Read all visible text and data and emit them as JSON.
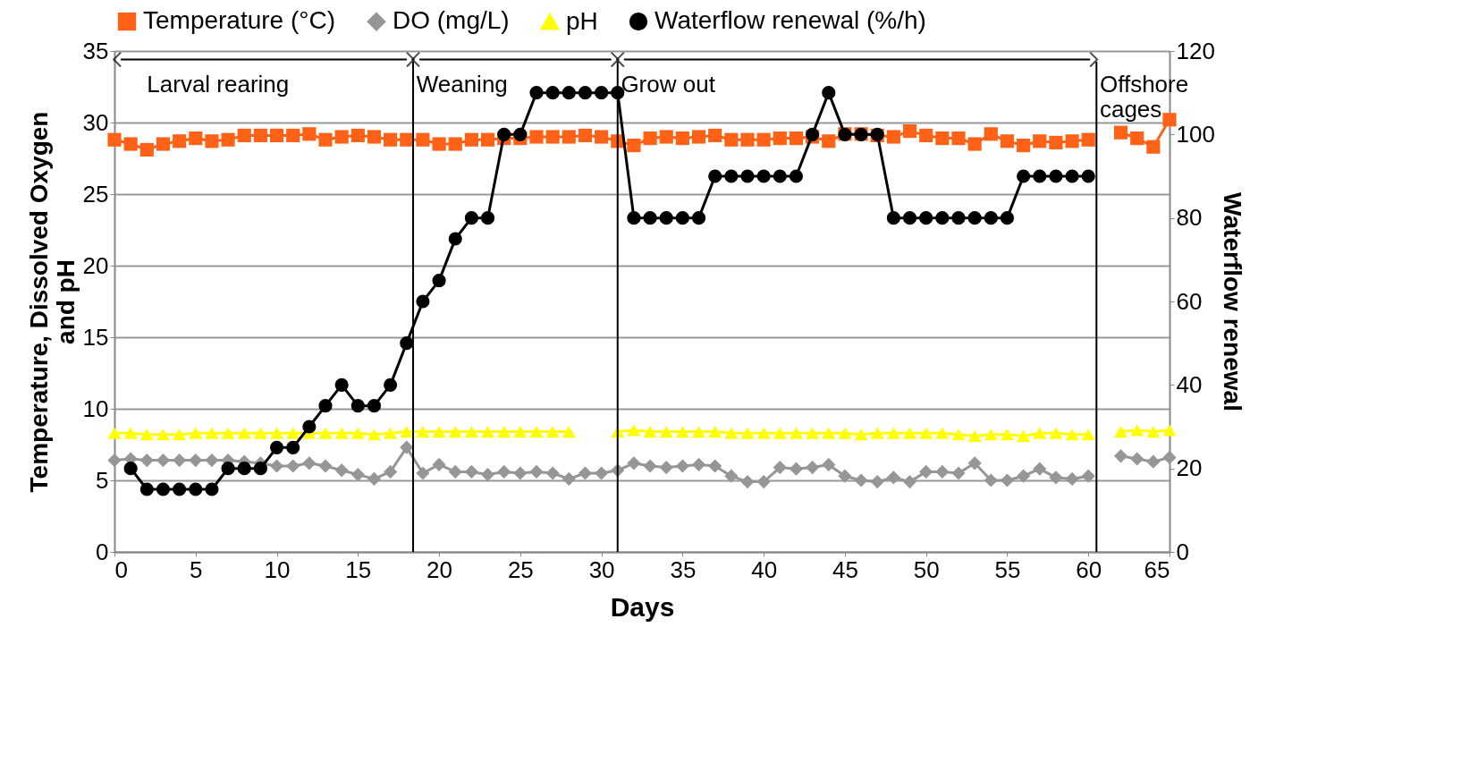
{
  "chart_data": {
    "type": "line",
    "xlabel": "Days",
    "ylabel": "Temperature, Dissolved Oxygen\nand pH",
    "y2label": "Waterflow renewal",
    "x": [
      0,
      1,
      2,
      3,
      4,
      5,
      6,
      7,
      8,
      9,
      10,
      11,
      12,
      13,
      14,
      15,
      16,
      17,
      18,
      19,
      20,
      21,
      22,
      23,
      24,
      25,
      26,
      27,
      28,
      29,
      30,
      31,
      32,
      33,
      34,
      35,
      36,
      37,
      38,
      39,
      40,
      41,
      42,
      43,
      44,
      45,
      46,
      47,
      48,
      49,
      50,
      51,
      52,
      53,
      54,
      55,
      56,
      57,
      58,
      59,
      60,
      61,
      62,
      63,
      64,
      65
    ],
    "series": [
      {
        "name": "Temperature (°C)",
        "color": "#ff6117",
        "marker": "square",
        "values": [
          28.8,
          28.5,
          28.1,
          28.5,
          28.7,
          28.9,
          28.7,
          28.8,
          29.1,
          29.1,
          29.1,
          29.1,
          29.2,
          28.8,
          29.0,
          29.1,
          29.0,
          28.8,
          28.8,
          28.8,
          28.5,
          28.5,
          28.8,
          28.8,
          28.9,
          28.9,
          29.0,
          29.0,
          29.0,
          29.1,
          29.0,
          28.7,
          28.4,
          28.9,
          29.0,
          28.9,
          29.0,
          29.1,
          28.8,
          28.8,
          28.8,
          28.9,
          28.9,
          29.0,
          28.7,
          29.2,
          29.2,
          29.1,
          29.0,
          29.4,
          29.1,
          28.9,
          28.9,
          28.5,
          29.2,
          28.7,
          28.4,
          28.7,
          28.6,
          28.7,
          28.8,
          null,
          29.3,
          28.9,
          28.3,
          30.2
        ]
      },
      {
        "name": "DO (mg/L)",
        "color": "#969696",
        "marker": "diamond",
        "values": [
          6.4,
          6.5,
          6.4,
          6.4,
          6.4,
          6.4,
          6.4,
          6.4,
          6.3,
          6.2,
          6.0,
          6.0,
          6.2,
          6.0,
          5.7,
          5.4,
          5.1,
          5.6,
          7.3,
          5.5,
          6.1,
          5.6,
          5.6,
          5.4,
          5.6,
          5.5,
          5.6,
          5.5,
          5.1,
          5.5,
          5.5,
          5.7,
          6.2,
          6.0,
          5.9,
          6.0,
          6.1,
          6.0,
          5.3,
          4.9,
          4.9,
          5.9,
          5.8,
          5.9,
          6.1,
          5.3,
          5.0,
          4.9,
          5.2,
          4.9,
          5.6,
          5.6,
          5.5,
          6.2,
          5.0,
          5.0,
          5.3,
          5.8,
          5.2,
          5.1,
          5.3,
          null,
          6.7,
          6.5,
          6.3,
          6.6
        ]
      },
      {
        "name": "pH",
        "color": "#ffff00",
        "marker": "triangle",
        "values": [
          8.3,
          8.3,
          8.2,
          8.2,
          8.2,
          8.3,
          8.3,
          8.3,
          8.3,
          8.3,
          8.3,
          8.3,
          8.3,
          8.3,
          8.3,
          8.3,
          8.2,
          8.3,
          8.4,
          8.4,
          8.4,
          8.4,
          8.4,
          8.4,
          8.4,
          8.4,
          8.4,
          8.4,
          8.4,
          null,
          null,
          8.4,
          8.5,
          8.4,
          8.4,
          8.4,
          8.4,
          8.4,
          8.3,
          8.3,
          8.3,
          8.3,
          8.3,
          8.3,
          8.3,
          8.3,
          8.2,
          8.3,
          8.3,
          8.3,
          8.3,
          8.3,
          8.2,
          8.1,
          8.2,
          8.2,
          8.1,
          8.3,
          8.3,
          8.2,
          8.2,
          null,
          8.4,
          8.5,
          8.4,
          8.5
        ]
      },
      {
        "name": "Waterflow renewal (%/h)",
        "color": "#000000",
        "marker": "circle",
        "axis": "y2",
        "values": [
          null,
          20,
          15,
          15,
          15,
          15,
          15,
          20,
          20,
          20,
          25,
          25,
          30,
          35,
          40,
          35,
          35,
          40,
          50,
          60,
          65,
          75,
          80,
          80,
          100,
          100,
          110,
          110,
          110,
          110,
          110,
          110,
          80,
          80,
          80,
          80,
          80,
          90,
          90,
          90,
          90,
          90,
          90,
          100,
          110,
          100,
          100,
          100,
          80,
          80,
          80,
          80,
          80,
          80,
          80,
          80,
          90,
          90,
          90,
          90,
          90,
          null,
          null,
          null,
          null,
          null
        ]
      }
    ],
    "xlim": [
      0,
      65
    ],
    "xticks": [
      0,
      5,
      10,
      15,
      20,
      25,
      30,
      35,
      40,
      45,
      50,
      55,
      60,
      65
    ],
    "ylim": [
      0,
      35
    ],
    "yticks": [
      0,
      5,
      10,
      15,
      20,
      25,
      30,
      35
    ],
    "y2lim": [
      0,
      120
    ],
    "y2ticks": [
      0,
      20,
      40,
      60,
      80,
      100,
      120
    ],
    "ref_lines": [
      {
        "axis": "x",
        "value": 18.4,
        "color": "#000000"
      },
      {
        "axis": "x",
        "value": 31,
        "color": "#000000"
      },
      {
        "axis": "x",
        "value": 60.5,
        "color": "#000000"
      }
    ],
    "annotations": [
      "Larval rearing",
      "Weaning",
      "Grow out",
      "Offshore\ncages"
    ],
    "grid": "y",
    "legend": "top",
    "line_style": "solid"
  }
}
